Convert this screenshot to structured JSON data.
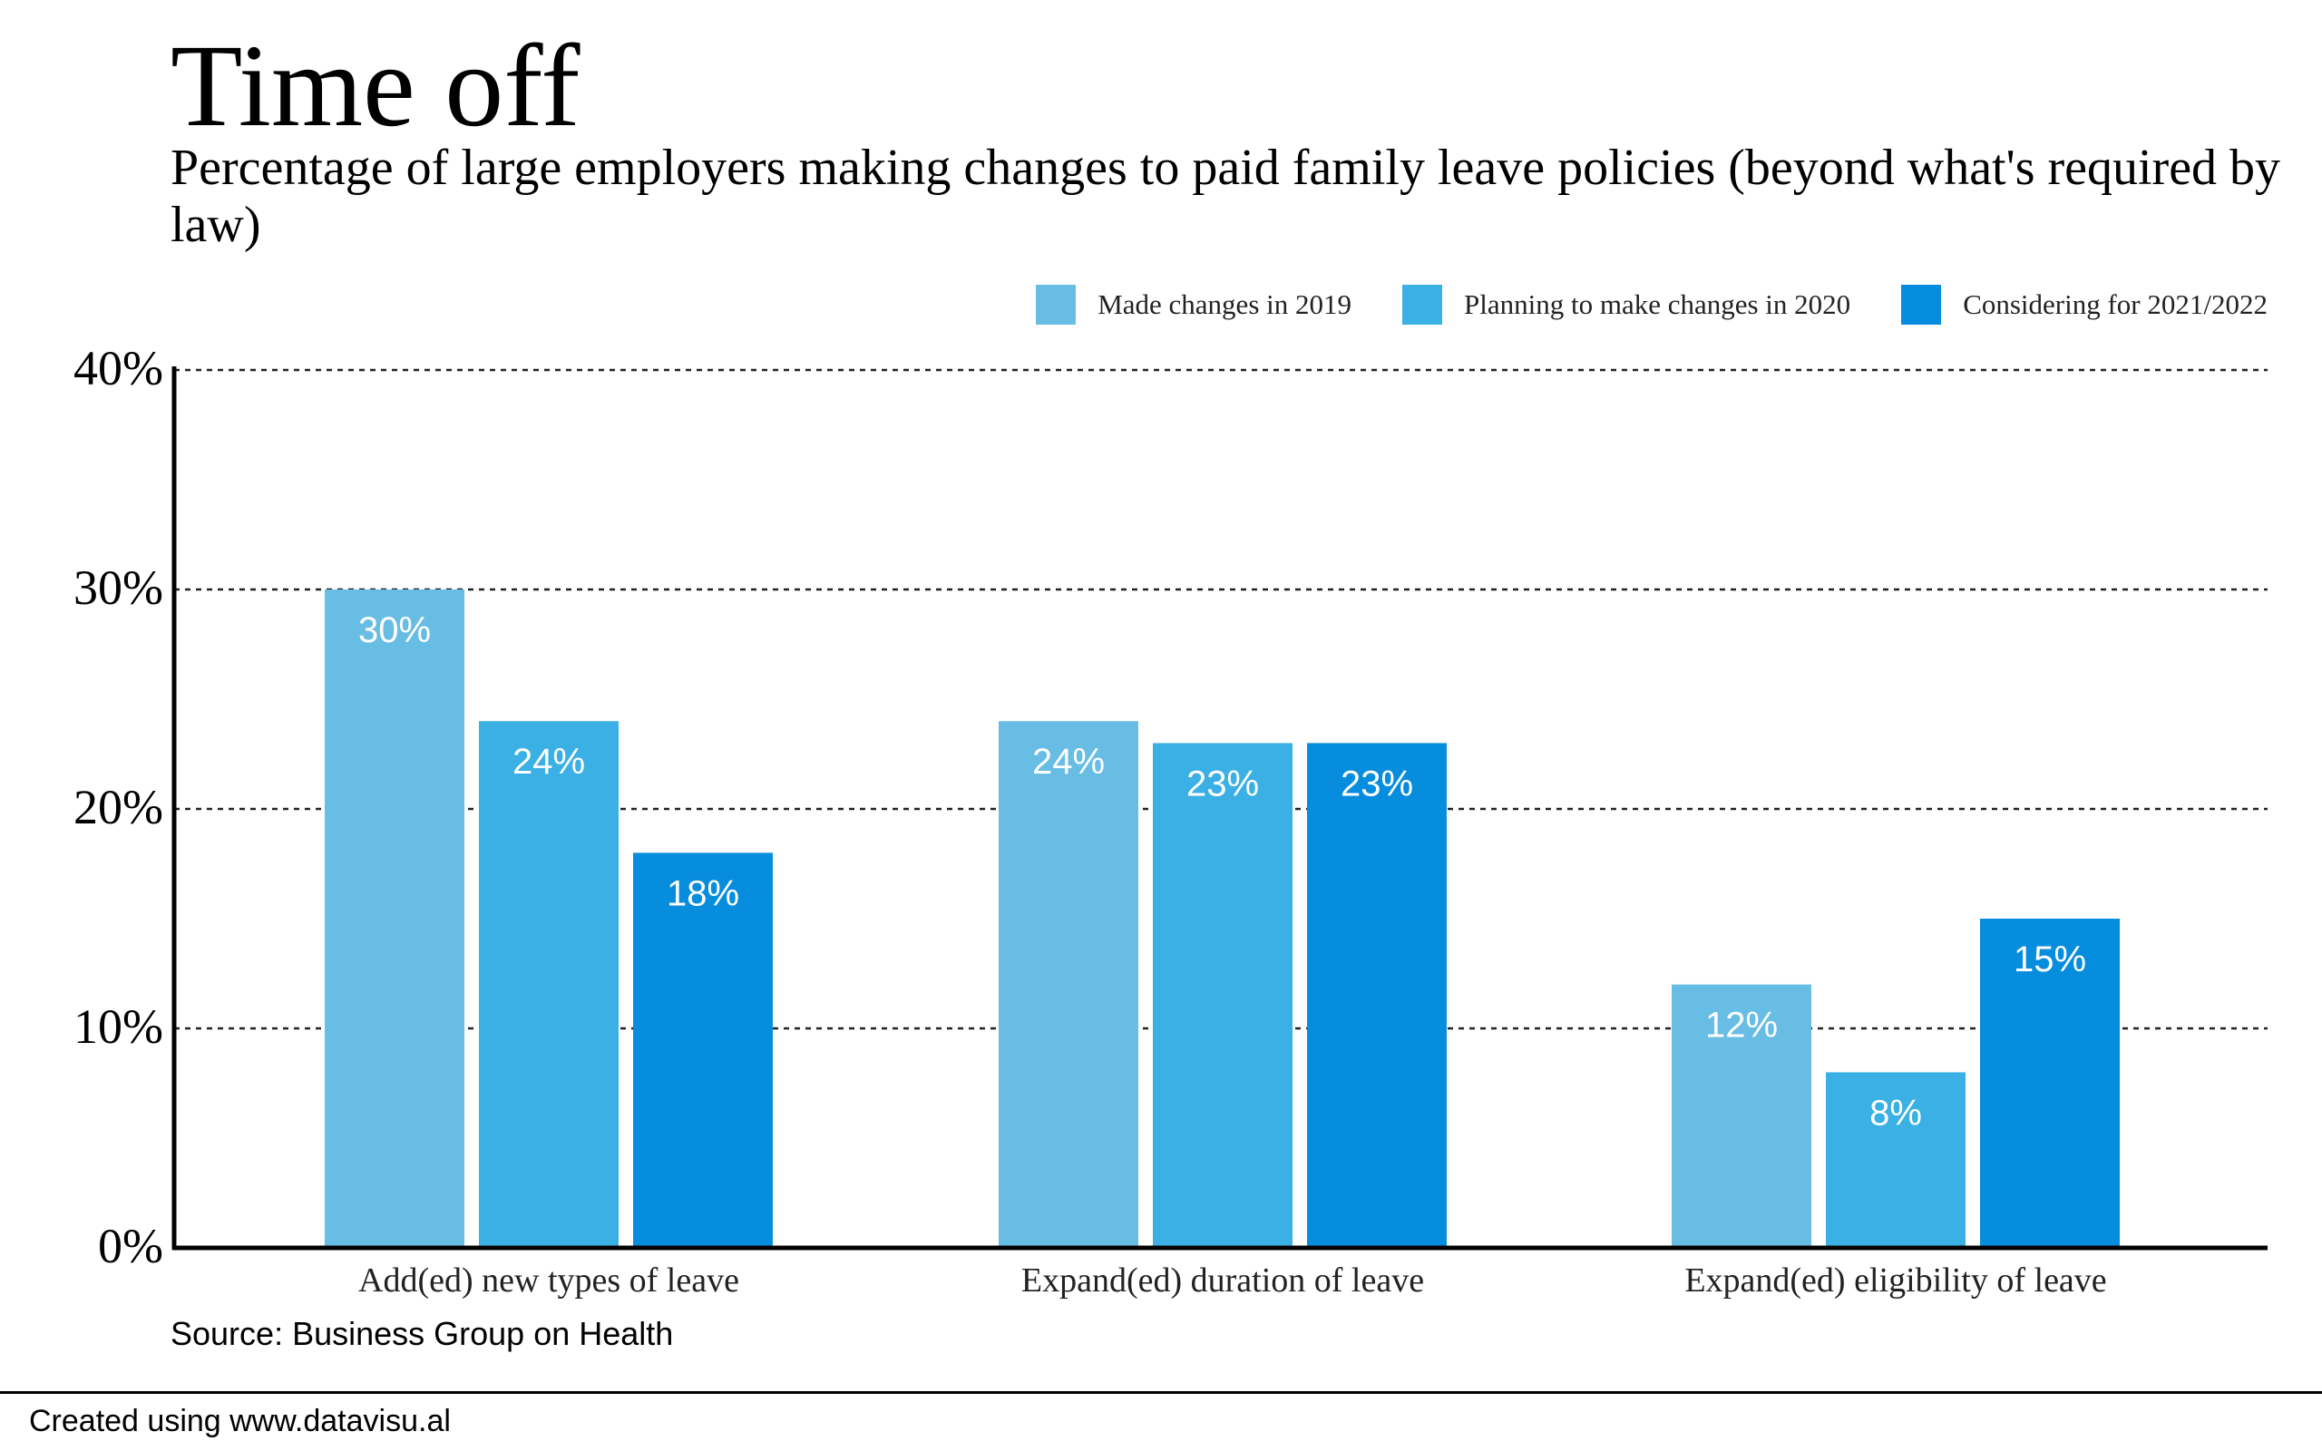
{
  "title": "Time off",
  "subtitle": "Percentage of large employers making changes to paid family leave policies (beyond what's required by law)",
  "source": "Source: Business Group on Health",
  "footer": "Created using www.datavisu.al",
  "colors": {
    "series_2019": "#68bde4",
    "series_2020": "#3bb0e4",
    "series_2021": "#078ddd",
    "axis": "#000000",
    "grid": "#222222",
    "bar_label": "#ffffff"
  },
  "chart_data": {
    "type": "bar",
    "title": "Time off",
    "subtitle": "Percentage of large employers making changes to paid family leave policies (beyond what's required by law)",
    "categories": [
      "Add(ed) new types of leave",
      "Expand(ed) duration of leave",
      "Expand(ed) eligibility of leave"
    ],
    "series": [
      {
        "name": "Made changes in 2019",
        "values": [
          30,
          24,
          12
        ],
        "labels": [
          "30%",
          "24%",
          "12%"
        ]
      },
      {
        "name": "Planning to make changes in 2020",
        "values": [
          24,
          23,
          8
        ],
        "labels": [
          "24%",
          "23%",
          "8%"
        ]
      },
      {
        "name": "Considering for 2021/2022",
        "values": [
          18,
          23,
          15
        ],
        "labels": [
          "18%",
          "23%",
          "15%"
        ]
      }
    ],
    "ylim": [
      0,
      40
    ],
    "yticks": [
      0,
      10,
      20,
      30,
      40
    ],
    "ytick_labels": [
      "0%",
      "10%",
      "20%",
      "30%",
      "40%"
    ],
    "grid": true,
    "legend_position": "top-right",
    "xlabel": "",
    "ylabel": ""
  }
}
